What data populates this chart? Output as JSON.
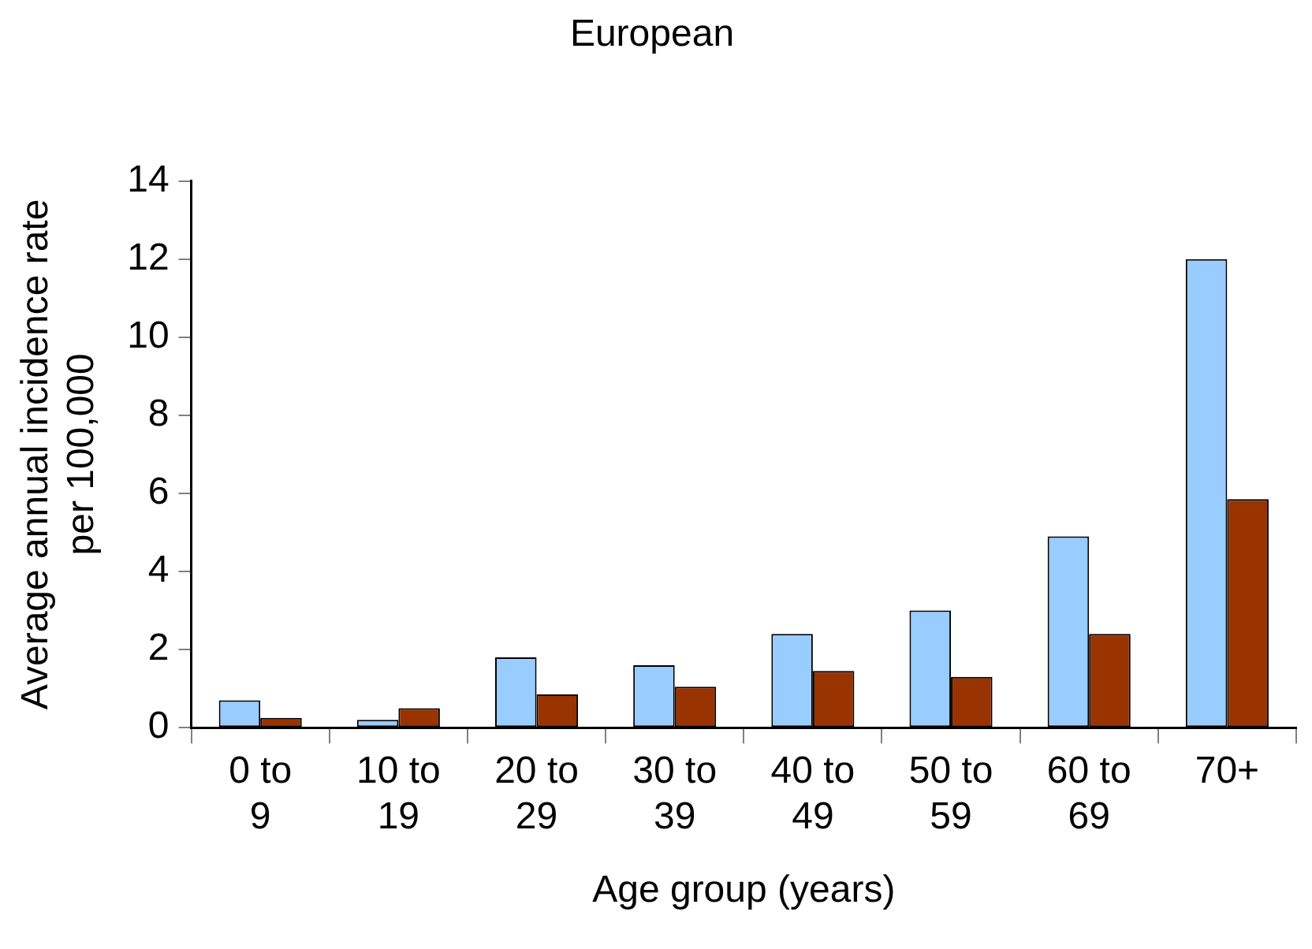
{
  "chart_data": {
    "type": "bar",
    "title": "European",
    "xlabel": "Age group (years)",
    "ylabel": "Average annual incidence rate per 100,000",
    "categories": [
      "0 to 9",
      "10 to 19",
      "20 to 29",
      "30 to 39",
      "40 to 49",
      "50 to 59",
      "60 to 69",
      "70+"
    ],
    "series": [
      {
        "color": "#99ccff",
        "values": [
          0.7,
          0.2,
          1.8,
          1.6,
          2.4,
          3.0,
          4.9,
          12.0
        ]
      },
      {
        "color": "#993300",
        "values": [
          0.25,
          0.5,
          0.85,
          1.05,
          1.45,
          1.3,
          2.4,
          5.85
        ]
      }
    ],
    "ylim": [
      0,
      14
    ],
    "yticks": [
      0,
      2,
      4,
      6,
      8,
      10,
      12,
      14
    ],
    "grid": false,
    "legend": false
  }
}
